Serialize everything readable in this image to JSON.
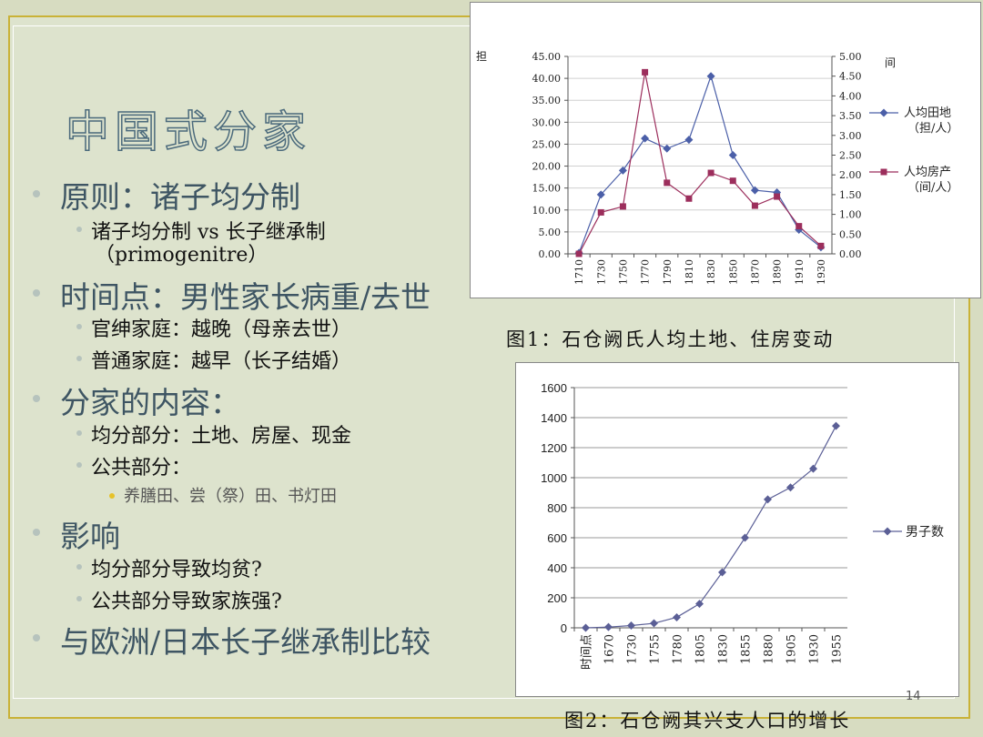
{
  "slide": {
    "title": "中国式分家",
    "page_number": "14",
    "accent_color": "#c9b237",
    "bullets": {
      "b1": "原则：诸子均分制",
      "b1a_1": "诸子均分制 vs 长子继承制",
      "b1a_2": "（primogenitre）",
      "b2": "时间点：男性家长病重/去世",
      "b2a": "官绅家庭：越晚（母亲去世）",
      "b2b": "普通家庭：越早（长子结婚）",
      "b3": "分家的内容：",
      "b3a": "均分部分：土地、房屋、现金",
      "b3b": "公共部分：",
      "b3b_i": "养膳田、尝（祭）田、书灯田",
      "b4": "影响",
      "b4a": "均分部分导致均贫?",
      "b4b": "公共部分导致家族强?",
      "b5": "与欧洲/日本长子继承制比较"
    },
    "captions": {
      "fig1": "图1：石仓阙氏人均土地、住房变动",
      "fig2": "图2：石仓阙其兴支人口的增长"
    }
  },
  "chart_data": [
    {
      "type": "line",
      "left_axis_label": "担",
      "right_axis_label": "间",
      "categories": [
        "1710",
        "1730",
        "1750",
        "1770",
        "1790",
        "1810",
        "1830",
        "1850",
        "1870",
        "1890",
        "1910",
        "1930"
      ],
      "left_ylim": [
        0,
        45
      ],
      "left_ticks": [
        "0.00",
        "5.00",
        "10.00",
        "15.00",
        "20.00",
        "25.00",
        "30.00",
        "35.00",
        "40.00",
        "45.00"
      ],
      "right_ylim": [
        0,
        5
      ],
      "right_ticks": [
        "0.00",
        "0.50",
        "1.00",
        "1.50",
        "2.00",
        "2.50",
        "3.00",
        "3.50",
        "4.00",
        "4.50",
        "5.00"
      ],
      "series": [
        {
          "name_line1": "人均田地",
          "name_line2": "（担/人）",
          "axis": "left",
          "marker": "diamond",
          "color": "#4b5fa8",
          "values": [
            0.2,
            13.5,
            19.0,
            26.3,
            24.0,
            26.0,
            40.5,
            22.5,
            14.5,
            14.0,
            5.5,
            1.5
          ]
        },
        {
          "name_line1": "人均房产",
          "name_line2": "（间/人）",
          "axis": "right",
          "marker": "square",
          "color": "#9c2e5c",
          "values": [
            0.0,
            1.05,
            1.2,
            4.6,
            1.8,
            1.4,
            2.05,
            1.85,
            1.22,
            1.45,
            0.7,
            0.2
          ]
        }
      ],
      "grid": true,
      "legend": "right"
    },
    {
      "type": "line",
      "categories": [
        "时间点",
        "1670",
        "1730",
        "1755",
        "1780",
        "1805",
        "1830",
        "1855",
        "1880",
        "1905",
        "1930",
        "1955"
      ],
      "ylim": [
        0,
        1600
      ],
      "yticks": [
        "0",
        "200",
        "400",
        "600",
        "800",
        "1000",
        "1200",
        "1400",
        "1600"
      ],
      "series": [
        {
          "name": "男子数",
          "marker": "diamond",
          "color": "#5b5f96",
          "values": [
            0,
            5,
            15,
            30,
            70,
            160,
            370,
            600,
            855,
            935,
            1060,
            1345
          ]
        }
      ],
      "grid": true,
      "legend": "right"
    }
  ]
}
